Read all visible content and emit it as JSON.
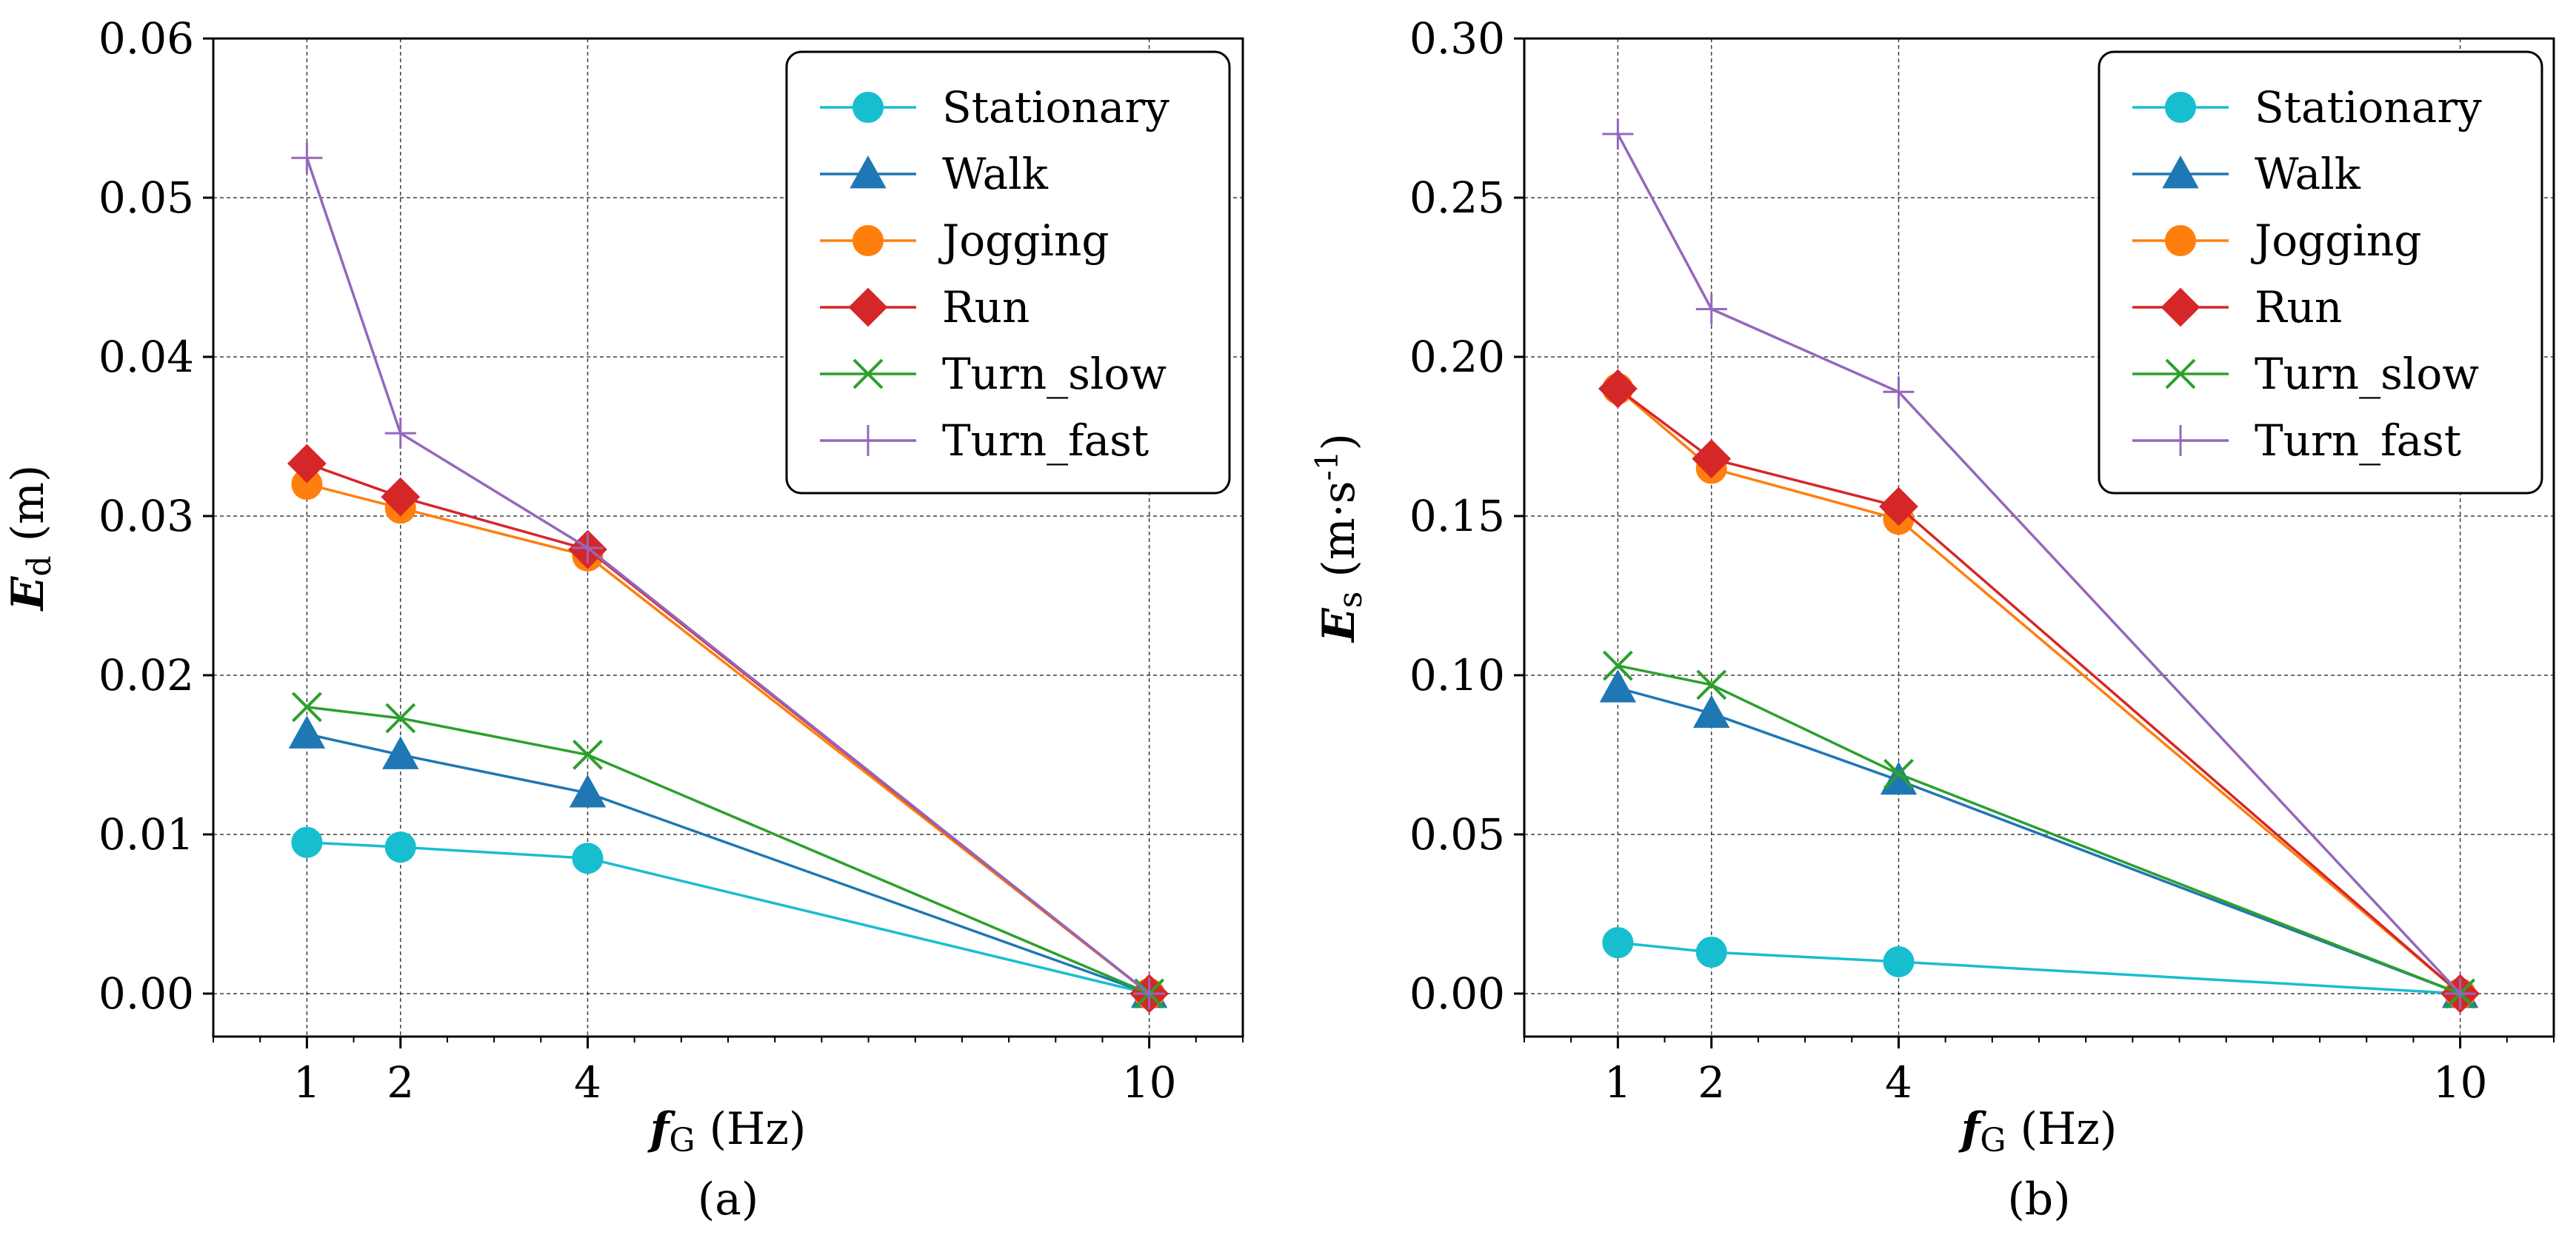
{
  "chart_data": [
    {
      "type": "line",
      "panel_label": "(a)",
      "xlabel_var": "f",
      "xlabel_sub": "G",
      "xlabel_unit": " (Hz)",
      "ylabel_var": "E",
      "ylabel_sub": "d",
      "ylabel_unit": " (m)",
      "x": [
        1,
        2,
        4,
        10
      ],
      "x_tick_labels": [
        "1",
        "2",
        "4",
        "10"
      ],
      "xlim": [
        0,
        11
      ],
      "ylim": [
        -0.0027,
        0.06
      ],
      "y_ticks": [
        0.0,
        0.01,
        0.02,
        0.03,
        0.04,
        0.05,
        0.06
      ],
      "y_tick_labels": [
        "0.00",
        "0.01",
        "0.02",
        "0.03",
        "0.04",
        "0.05",
        "0.06"
      ],
      "grid": true,
      "legend_position": "top-right",
      "series": [
        {
          "name": "Stationary",
          "values": [
            0.0095,
            0.0092,
            0.0085,
            0.0
          ],
          "color": "#17becf",
          "marker": "circle"
        },
        {
          "name": "Walk",
          "values": [
            0.0163,
            0.015,
            0.0126,
            0.0
          ],
          "color": "#1f77b4",
          "marker": "triangle"
        },
        {
          "name": "Jogging",
          "values": [
            0.032,
            0.0305,
            0.0275,
            0.0
          ],
          "color": "#ff7f0e",
          "marker": "circle"
        },
        {
          "name": "Run",
          "values": [
            0.0333,
            0.0312,
            0.0279,
            0.0
          ],
          "color": "#d62728",
          "marker": "diamond"
        },
        {
          "name": "Turn_slow",
          "values": [
            0.018,
            0.0173,
            0.015,
            0.0
          ],
          "color": "#2ca02c",
          "marker": "x"
        },
        {
          "name": "Turn_fast",
          "values": [
            0.0525,
            0.0352,
            0.028,
            0.0
          ],
          "color": "#9467bd",
          "marker": "plus"
        }
      ]
    },
    {
      "type": "line",
      "panel_label": "(b)",
      "xlabel_var": "f",
      "xlabel_sub": "G",
      "xlabel_unit": " (Hz)",
      "ylabel_var": "E",
      "ylabel_sub": "s",
      "ylabel_unit": " (m·s",
      "ylabel_sup": "-1",
      "ylabel_close": ")",
      "x": [
        1,
        2,
        4,
        10
      ],
      "x_tick_labels": [
        "1",
        "2",
        "4",
        "10"
      ],
      "xlim": [
        0,
        11
      ],
      "ylim": [
        -0.0135,
        0.3
      ],
      "y_ticks": [
        0.0,
        0.05,
        0.1,
        0.15,
        0.2,
        0.25,
        0.3
      ],
      "y_tick_labels": [
        "0.00",
        "0.05",
        "0.10",
        "0.15",
        "0.20",
        "0.25",
        "0.30"
      ],
      "grid": true,
      "legend_position": "top-right",
      "series": [
        {
          "name": "Stationary",
          "values": [
            0.016,
            0.013,
            0.01,
            0.0
          ],
          "color": "#17becf",
          "marker": "circle"
        },
        {
          "name": "Walk",
          "values": [
            0.096,
            0.088,
            0.067,
            0.0
          ],
          "color": "#1f77b4",
          "marker": "triangle"
        },
        {
          "name": "Jogging",
          "values": [
            0.19,
            0.165,
            0.149,
            0.0
          ],
          "color": "#ff7f0e",
          "marker": "circle"
        },
        {
          "name": "Run",
          "values": [
            0.19,
            0.168,
            0.153,
            0.0
          ],
          "color": "#d62728",
          "marker": "diamond"
        },
        {
          "name": "Turn_slow",
          "values": [
            0.103,
            0.097,
            0.069,
            0.0
          ],
          "color": "#2ca02c",
          "marker": "x"
        },
        {
          "name": "Turn_fast",
          "values": [
            0.27,
            0.215,
            0.189,
            0.0
          ],
          "color": "#9467bd",
          "marker": "plus"
        }
      ]
    }
  ]
}
